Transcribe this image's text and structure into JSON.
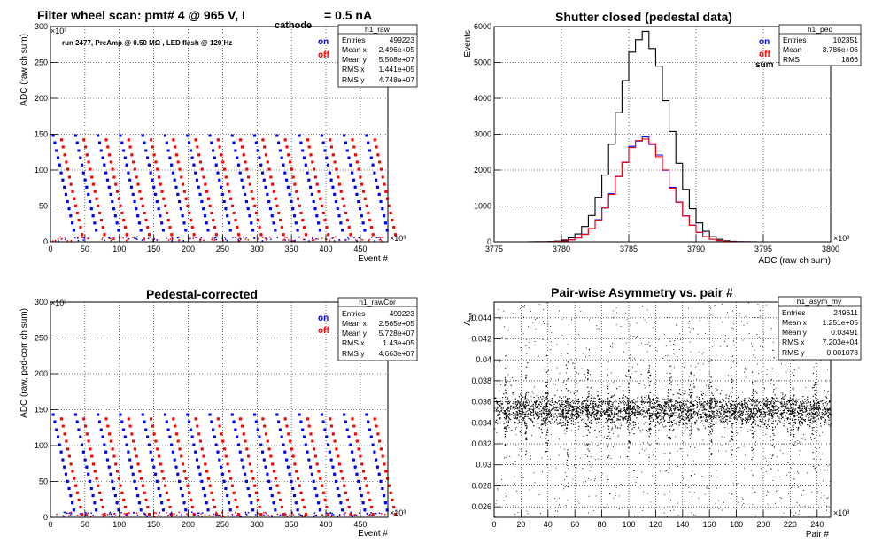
{
  "chart_data": [
    {
      "type": "scatter",
      "title": "Filter wheel scan: pmt#   4 @   965 V, I",
      "title_sub": "cathode",
      "title_tail": " = 0.5 nA",
      "annotation": "run 2477, PreAmp @ 0.50 MΩ , LED flash @  120 Hz",
      "xlabel": "Event #",
      "ylabel": "ADC (raw ch sum)",
      "xlim": [
        0,
        490
      ],
      "ylim": [
        0,
        300
      ],
      "x_multiplier": "×10³",
      "y_multiplier": "×10³",
      "x_ticks": [
        "0",
        "50",
        "100",
        "150",
        "200",
        "250",
        "300",
        "350",
        "400",
        "450"
      ],
      "y_ticks": [
        "0",
        "50",
        "100",
        "150",
        "200",
        "250",
        "300"
      ],
      "legend": [
        {
          "name": "on",
          "color": "#0000ff"
        },
        {
          "name": "off",
          "color": "#ff0000"
        }
      ],
      "stats": {
        "name": "h1_raw",
        "rows": [
          [
            "Entries",
            "499223"
          ],
          [
            "Mean x",
            "2.496e+05"
          ],
          [
            "Mean y",
            "5.508e+07"
          ],
          [
            "RMS x",
            "1.441e+05"
          ],
          [
            "RMS y",
            "4.748e+07"
          ]
        ]
      },
      "grid": true
    },
    {
      "type": "line",
      "title": "Shutter closed (pedestal data)",
      "xlabel": "ADC (raw ch sum)",
      "ylabel": "Events",
      "xlim": [
        3775,
        3800
      ],
      "ylim": [
        0,
        6000
      ],
      "x_multiplier": "×10³",
      "x_ticks": [
        "3775",
        "3780",
        "3785",
        "3790",
        "3795",
        "3800"
      ],
      "y_ticks": [
        "0",
        "1000",
        "2000",
        "3000",
        "4000",
        "5000",
        "6000"
      ],
      "legend": [
        {
          "name": "on",
          "color": "#0000ff"
        },
        {
          "name": "off",
          "color": "#ff0000"
        },
        {
          "name": "sum",
          "color": "#000000"
        }
      ],
      "series": [
        {
          "name": "sum",
          "color": "#000000",
          "mean": 3786.1,
          "sigma": 1.9,
          "peak": 5800
        },
        {
          "name": "on",
          "color": "#0000ff",
          "mean": 3786.1,
          "sigma": 1.9,
          "peak": 2900
        },
        {
          "name": "off",
          "color": "#ff0000",
          "mean": 3786.1,
          "sigma": 1.9,
          "peak": 2880
        }
      ],
      "stats": {
        "name": "h1_ped",
        "rows": [
          [
            "Entries",
            "102351"
          ],
          [
            "Mean",
            "3.786e+06"
          ],
          [
            "RMS",
            "1866"
          ]
        ]
      },
      "grid": true
    },
    {
      "type": "scatter",
      "title": "Pedestal-corrected",
      "xlabel": "Event #",
      "ylabel": "ADC (raw, ped-corr ch sum)",
      "xlim": [
        0,
        490
      ],
      "ylim": [
        0,
        300
      ],
      "x_multiplier": "×10³",
      "y_multiplier": "×10³",
      "x_ticks": [
        "0",
        "50",
        "100",
        "150",
        "200",
        "250",
        "300",
        "350",
        "400",
        "450"
      ],
      "y_ticks": [
        "0",
        "50",
        "100",
        "150",
        "200",
        "250",
        "300"
      ],
      "legend": [
        {
          "name": "on",
          "color": "#0000ff"
        },
        {
          "name": "off",
          "color": "#ff0000"
        }
      ],
      "stats": {
        "name": "h1_rawCor",
        "rows": [
          [
            "Entries",
            "499223"
          ],
          [
            "Mean x",
            "2.565e+05"
          ],
          [
            "Mean y",
            "5.728e+07"
          ],
          [
            "RMS x",
            "1.43e+05"
          ],
          [
            "RMS y",
            "4.663e+07"
          ]
        ]
      },
      "grid": true
    },
    {
      "type": "scatter",
      "title": "Pair-wise Asymmetry vs. pair #",
      "xlabel": "Pair #",
      "ylabel": "A",
      "ylabel_sub": "raw",
      "xlim": [
        0,
        250
      ],
      "ylim": [
        0.025,
        0.0455
      ],
      "x_multiplier": "×10³",
      "x_ticks": [
        "0",
        "20",
        "40",
        "60",
        "80",
        "100",
        "120",
        "140",
        "160",
        "180",
        "200",
        "220",
        "240"
      ],
      "y_ticks": [
        "0.026",
        "0.028",
        "0.03",
        "0.032",
        "0.034",
        "0.036",
        "0.038",
        "0.04",
        "0.042",
        "0.044"
      ],
      "stats": {
        "name": "h1_asym_my",
        "rows": [
          [
            "Entries",
            "249611"
          ],
          [
            "Mean x",
            "1.251e+05"
          ],
          [
            "Mean y",
            "0.03491"
          ],
          [
            "RMS x",
            "7.203e+04"
          ],
          [
            "RMS y",
            "0.001078"
          ]
        ]
      },
      "grid": true
    }
  ]
}
